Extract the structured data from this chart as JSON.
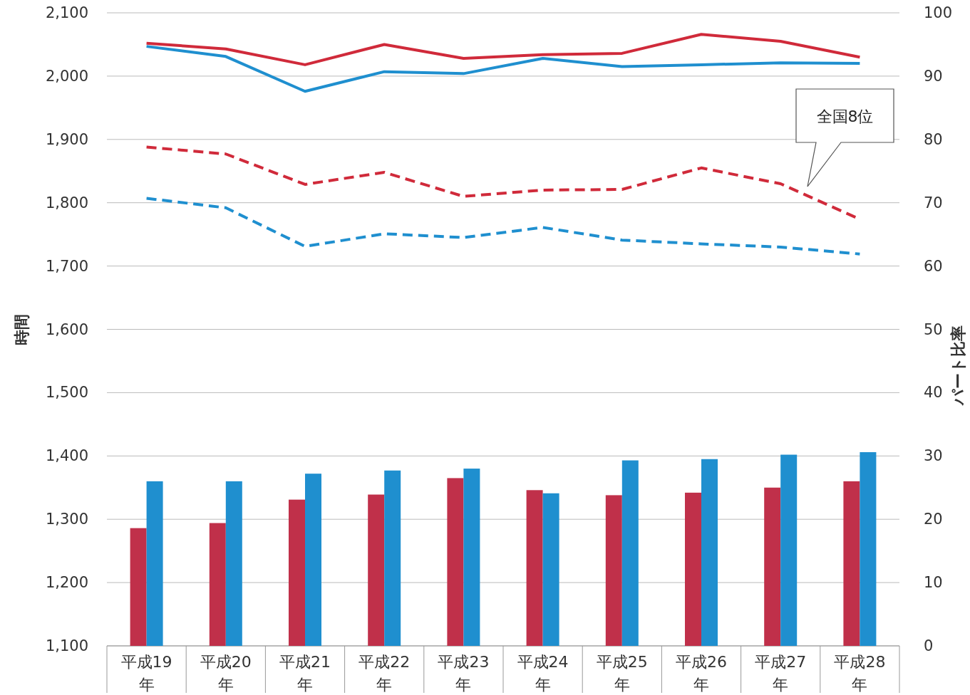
{
  "chart_data": {
    "type": "bar",
    "ylabel": "時間",
    "y2label": "パート比率",
    "categories": [
      "平成19年",
      "平成20年",
      "平成21年",
      "平成22年",
      "平成23年",
      "平成24年",
      "平成25年",
      "平成26年",
      "平成27年",
      "平成28年"
    ],
    "ylim": [
      1100,
      2100
    ],
    "yticks": [
      {
        "value": 1100,
        "label": "1,100"
      },
      {
        "value": 1200,
        "label": "1,200"
      },
      {
        "value": 1300,
        "label": "1,300"
      },
      {
        "value": 1400,
        "label": "1,400"
      },
      {
        "value": 1500,
        "label": "1,500"
      },
      {
        "value": 1600,
        "label": "1,600"
      },
      {
        "value": 1700,
        "label": "1,700"
      },
      {
        "value": 1800,
        "label": "1,800"
      },
      {
        "value": 1900,
        "label": "1,900"
      },
      {
        "value": 2000,
        "label": "2,000"
      },
      {
        "value": 2100,
        "label": "2,100"
      }
    ],
    "y2lim": [
      0,
      100
    ],
    "y2ticks": [
      0,
      10,
      20,
      30,
      40,
      50,
      60,
      70,
      80,
      90,
      100
    ],
    "grid": "y",
    "series": [
      {
        "axis": "y2",
        "color": "#c0304a",
        "values": [
          18.6,
          19.4,
          23.1,
          23.9,
          26.5,
          24.6,
          23.8,
          24.2,
          25.0,
          26.0
        ]
      },
      {
        "axis": "y2",
        "color": "#1f8fcf",
        "values": [
          26.0,
          26.0,
          27.2,
          27.7,
          28.0,
          24.1,
          29.3,
          29.5,
          30.2,
          30.6
        ]
      },
      {
        "type": "line",
        "color": "#d02a3a",
        "line_style": "solid",
        "values": [
          2052,
          2043,
          2018,
          2050,
          2028,
          2034,
          2036,
          2066,
          2055,
          2030
        ]
      },
      {
        "type": "line",
        "color": "#1f8fcf",
        "line_style": "solid",
        "values": [
          2047,
          2031,
          1976,
          2007,
          2004,
          2028,
          2015,
          2018,
          2021,
          2020
        ]
      },
      {
        "type": "line",
        "color": "#d02a3a",
        "line_style": "dashed",
        "values": [
          1888,
          1877,
          1829,
          1848,
          1810,
          1820,
          1821,
          1855,
          1830,
          1774
        ]
      },
      {
        "type": "line",
        "color": "#1f8fcf",
        "line_style": "dashed",
        "values": [
          1807,
          1792,
          1731,
          1751,
          1745,
          1761,
          1741,
          1735,
          1730,
          1719
        ]
      }
    ],
    "annotations": [
      "全国8位"
    ]
  }
}
